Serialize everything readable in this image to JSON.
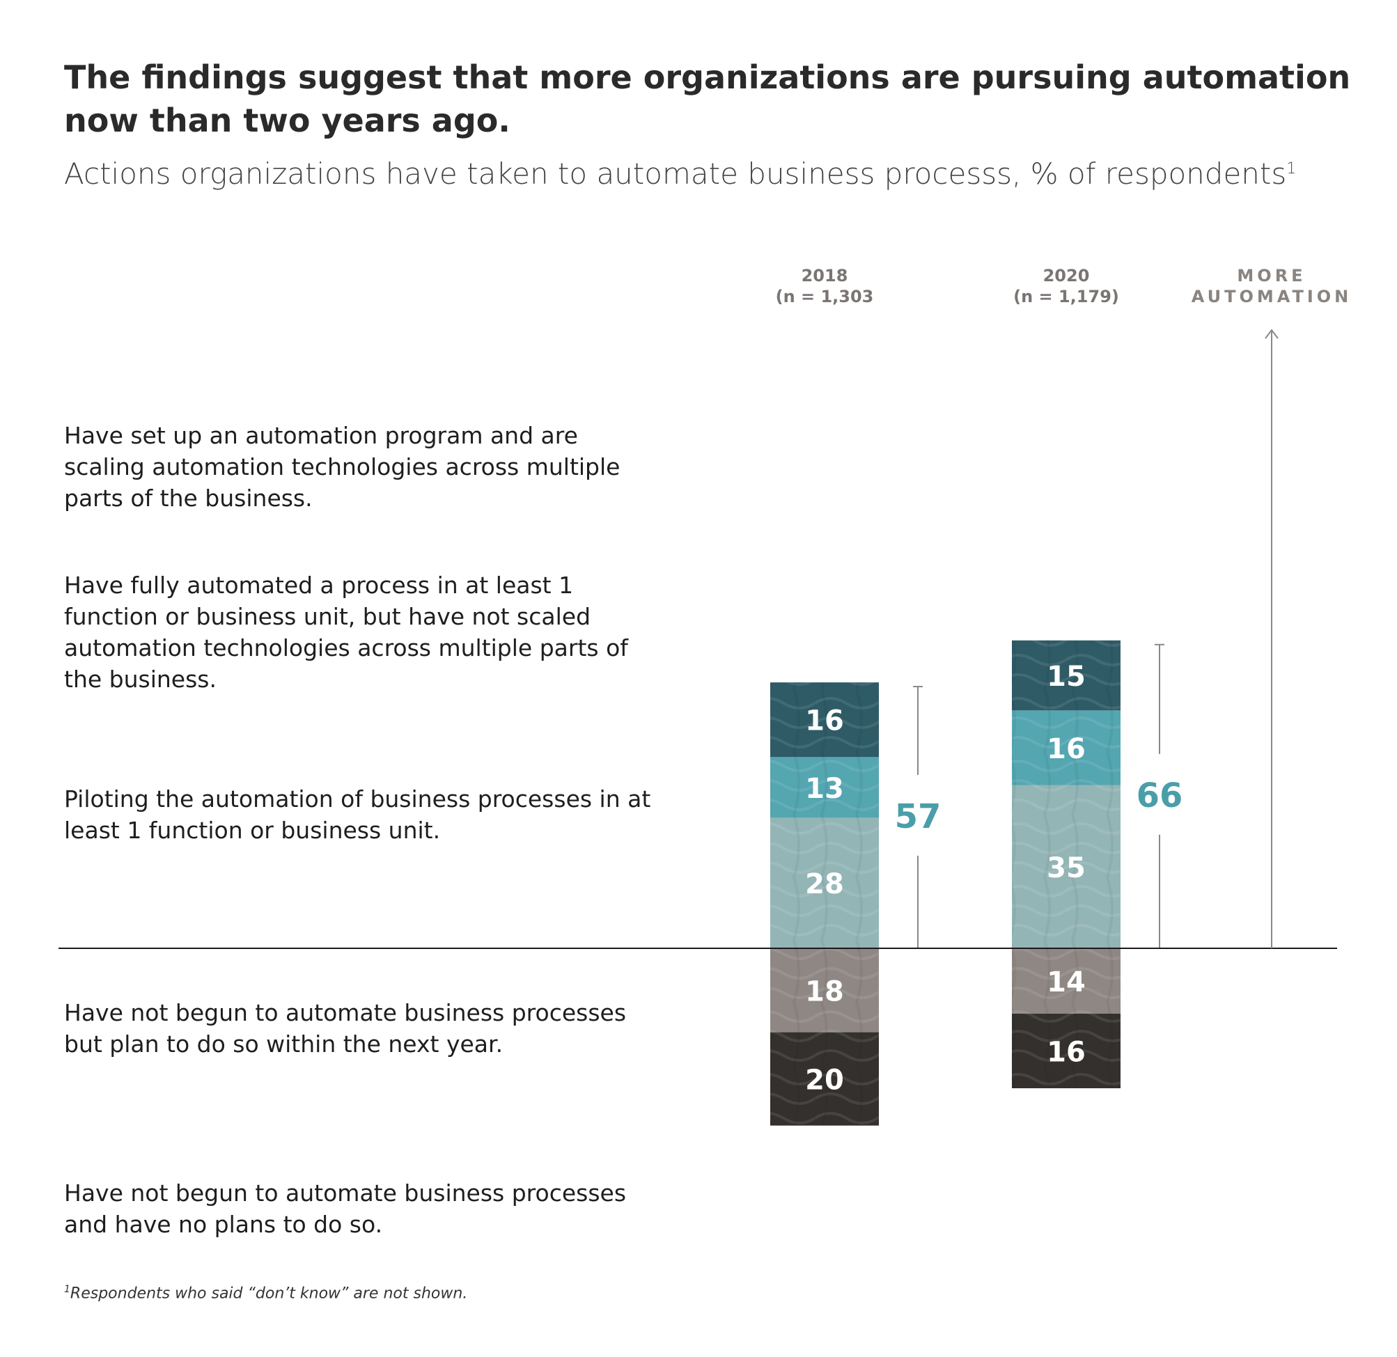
{
  "title": "The findings suggest that more organizations are pursuing automation now than two years ago.",
  "subtitle": "Actions organizations have taken to automate business processs, % of respondents",
  "subtitle_footnote_marker": "1",
  "footnote_marker": "1",
  "footnote_text": "Respondents who said “don’t know” are not shown.",
  "chart_data": {
    "type": "bar",
    "stacked": true,
    "diverging": true,
    "categories": [
      "2018",
      "2020"
    ],
    "category_sublabels": [
      "(n = 1,303",
      "(n = 1,179)"
    ],
    "series": [
      {
        "name": "Have set up an automation program and are scaling automation technologies across multiple parts of the business.",
        "values": [
          16,
          15
        ],
        "color": "#2e5b66",
        "side": "above"
      },
      {
        "name": "Have fully automated a process in at least 1 function or business unit, but have not scaled automation technologies across multiple parts of the business.",
        "values": [
          13,
          16
        ],
        "color": "#54a6b1",
        "side": "above"
      },
      {
        "name": "Piloting the automation of business processes in at least 1 function or business unit.",
        "values": [
          28,
          35
        ],
        "color": "#94b5b6",
        "side": "above"
      },
      {
        "name": "Have not begun to automate business processes but plan to do so within the next year.",
        "values": [
          18,
          14
        ],
        "color": "#8f8783",
        "side": "below"
      },
      {
        "name": "Have not begun to automate business processes and have no plans to do so.",
        "values": [
          20,
          16
        ],
        "color": "#34302d",
        "side": "below"
      }
    ],
    "totals_above": [
      57,
      66
    ],
    "total_color": "#4a9ea8",
    "arrow_label": [
      "MORE",
      "AUTOMATION"
    ],
    "value_label_color": "#ffffff",
    "grid": false,
    "legend": "left-row-labels"
  }
}
